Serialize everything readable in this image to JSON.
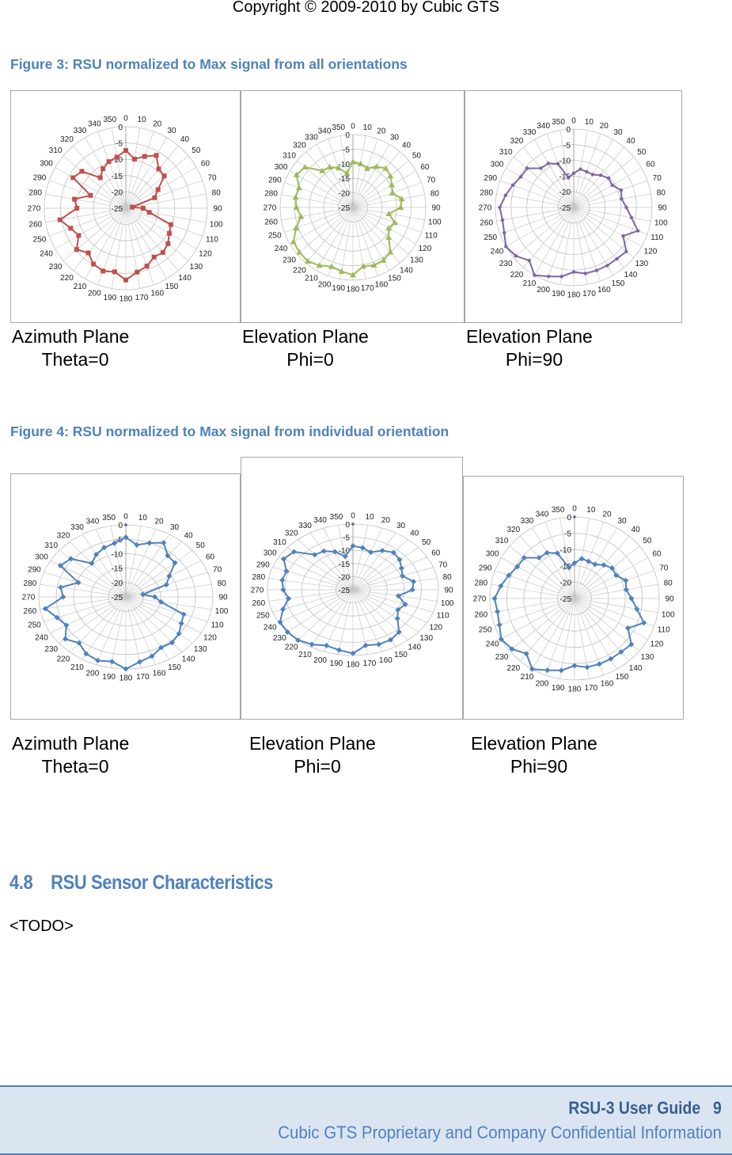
{
  "header": {
    "copyright": "Copyright © 2009-2010 by Cubic GTS"
  },
  "figure3": {
    "caption": "Figure 3: RSU normalized to Max signal from all orientations",
    "panels": [
      {
        "plane": "Azimuth Plane",
        "angle": "Theta=0"
      },
      {
        "plane": "Elevation Plane",
        "angle": "Phi=0"
      },
      {
        "plane": "Elevation Plane",
        "angle": "Phi=90"
      }
    ]
  },
  "figure4": {
    "caption": "Figure 4: RSU normalized to Max signal from individual orientation",
    "panels": [
      {
        "plane": "Azimuth Plane",
        "angle": "Theta=0"
      },
      {
        "plane": "Elevation Plane",
        "angle": "Phi=0"
      },
      {
        "plane": "Elevation Plane",
        "angle": "Phi=90"
      }
    ]
  },
  "section": {
    "number": "4.8",
    "title": "RSU Sensor Characteristics",
    "body": "<TODO>"
  },
  "footer": {
    "guide": "RSU-3 User Guide",
    "page": "9",
    "confidential": "Cubic GTS Proprietary and Company Confidential Information"
  },
  "chart_data": [
    {
      "type": "radar",
      "figure": "Figure 3",
      "panel": "Azimuth Plane Theta=0",
      "theta": [
        "0",
        "10",
        "20",
        "30",
        "40",
        "50",
        "60",
        "70",
        "80",
        "90",
        "100",
        "110",
        "120",
        "130",
        "140",
        "150",
        "160",
        "170",
        "180",
        "190",
        "200",
        "210",
        "220",
        "230",
        "240",
        "250",
        "260",
        "270",
        "280",
        "290",
        "300",
        "310",
        "320",
        "330",
        "340",
        "350"
      ],
      "radial_ticks": [
        "0",
        "-5",
        "-10",
        "-15",
        "-20",
        "-25"
      ],
      "rlim": [
        -25,
        0
      ],
      "grid": true,
      "color": "#c0504d",
      "marker": "square",
      "values": [
        -7.3,
        -9.7,
        -8.1,
        -6.3,
        -9.3,
        -9.6,
        -13.6,
        -15.6,
        -23,
        -19.7,
        -17.7,
        -10.3,
        -9.6,
        -8.1,
        -7.3,
        -7.7,
        -6.1,
        -5.1,
        -3,
        -5.2,
        -4.5,
        -5.2,
        -7.1,
        -5.3,
        -8.3,
        -7,
        -4.5,
        -10,
        -9,
        -13.5,
        -6.3,
        -7.4,
        -12.8,
        -11,
        -9.8,
        -9.1
      ]
    },
    {
      "type": "radar",
      "figure": "Figure 3",
      "panel": "Elevation Plane Phi=0",
      "theta": [
        "0",
        "10",
        "20",
        "30",
        "40",
        "50",
        "60",
        "70",
        "80",
        "90",
        "100",
        "110",
        "120",
        "130",
        "140",
        "150",
        "160",
        "170",
        "180",
        "190",
        "200",
        "210",
        "220",
        "230",
        "240",
        "250",
        "260",
        "270",
        "280",
        "290",
        "300",
        "310",
        "320",
        "330",
        "340",
        "350"
      ],
      "radial_ticks": [
        "0",
        "-5",
        "-10",
        "-15",
        "-20",
        "-25"
      ],
      "rlim": [
        -25,
        0
      ],
      "grid": true,
      "color": "#9bbb59",
      "marker": "triangle",
      "values": [
        -9.3,
        -9.8,
        -10.8,
        -8.8,
        -7.5,
        -8.2,
        -9.6,
        -10.6,
        -8,
        -8.6,
        -12.5,
        -9.7,
        -10.8,
        -9,
        -5,
        -4,
        -3.9,
        -4.5,
        -1.8,
        -2.7,
        -3.4,
        -2,
        -0.9,
        -1,
        -1.4,
        -4.2,
        -6.9,
        -5.6,
        -5,
        -5.3,
        -2.6,
        -3.5,
        -8.6,
        -9,
        -10.6,
        -13.1
      ]
    },
    {
      "type": "radar",
      "figure": "Figure 3",
      "panel": "Elevation Plane Phi=90",
      "theta": [
        "0",
        "10",
        "20",
        "30",
        "40",
        "50",
        "60",
        "70",
        "80",
        "90",
        "100",
        "110",
        "120",
        "130",
        "140",
        "150",
        "160",
        "170",
        "180",
        "190",
        "200",
        "210",
        "220",
        "230",
        "240",
        "250",
        "260",
        "270",
        "280",
        "290",
        "300",
        "310",
        "320",
        "330",
        "340",
        "350"
      ],
      "radial_ticks": [
        "0",
        "-5",
        "-10",
        "-15",
        "-20",
        "-25"
      ],
      "rlim": [
        -25,
        0
      ],
      "grid": true,
      "color": "#8064a2",
      "marker": "circle",
      "values": [
        -14.1,
        -12.6,
        -12.9,
        -12.9,
        -11.6,
        -10.5,
        -10.8,
        -8.9,
        -9.5,
        -8.2,
        -6.3,
        -3.2,
        -6.8,
        -3.1,
        -3.6,
        -3.6,
        -3.6,
        -3.6,
        -4.4,
        -2.6,
        -1.6,
        0,
        -2.9,
        -0.9,
        0,
        -1.4,
        -1.9,
        -1.4,
        -2.9,
        -4.3,
        -5.5,
        -5.6,
        -8.7,
        -8.8,
        -10.2,
        -15.4
      ]
    },
    {
      "type": "radar",
      "figure": "Figure 4",
      "panel": "Azimuth Plane Theta=0",
      "theta": [
        "0",
        "10",
        "20",
        "30",
        "40",
        "50",
        "60",
        "70",
        "80",
        "90",
        "100",
        "110",
        "120",
        "130",
        "140",
        "150",
        "160",
        "170",
        "180",
        "190",
        "200",
        "210",
        "220",
        "230",
        "240",
        "250",
        "260",
        "270",
        "280",
        "290",
        "300",
        "310",
        "320",
        "330",
        "340",
        "350"
      ],
      "radial_ticks": [
        "0",
        "-5",
        "-10",
        "-15",
        "-20",
        "-25"
      ],
      "rlim": [
        -25,
        0
      ],
      "grid": true,
      "color": "#4f81bd",
      "marker": "diamond",
      "reference_point": {
        "theta": 0,
        "value": 0,
        "color": "#8064a2"
      },
      "values": [
        -4.3,
        -6.7,
        -5.1,
        -3.3,
        -6.3,
        -6.6,
        -10.6,
        -12.6,
        -20,
        -16.7,
        -14.7,
        -7.3,
        -6.6,
        -5.1,
        -4.3,
        -4.7,
        -3.1,
        -2.1,
        0,
        -2.2,
        -1.5,
        -2.2,
        -4.1,
        -2.3,
        -5.3,
        -4,
        -1.5,
        -7,
        -6,
        -10.5,
        -3.3,
        -4.4,
        -9.8,
        -8,
        -6.8,
        -6.1
      ]
    },
    {
      "type": "radar",
      "figure": "Figure 4",
      "panel": "Elevation Plane Phi=0",
      "theta": [
        "0",
        "10",
        "20",
        "30",
        "40",
        "50",
        "60",
        "70",
        "80",
        "90",
        "100",
        "110",
        "120",
        "130",
        "140",
        "150",
        "160",
        "170",
        "180",
        "190",
        "200",
        "210",
        "220",
        "230",
        "240",
        "250",
        "260",
        "270",
        "280",
        "290",
        "300",
        "310",
        "320",
        "330",
        "340",
        "350"
      ],
      "radial_ticks": [
        "0",
        "-5",
        "-10",
        "-15",
        "-20",
        "-25"
      ],
      "rlim": [
        -25,
        0
      ],
      "grid": true,
      "color": "#4f81bd",
      "marker": "diamond",
      "reference_point": {
        "theta": 0,
        "value": 0,
        "color": "#8064a2"
      },
      "values": [
        -8.3,
        -8.8,
        -9.8,
        -7.8,
        -6.5,
        -7.2,
        -8.6,
        -9.6,
        -7,
        -7.6,
        -11.5,
        -8.7,
        -9.8,
        -8,
        -4,
        -3,
        -2.9,
        -3.5,
        -0.8,
        -1.7,
        -2.4,
        -1,
        0,
        0,
        -0.4,
        -3.2,
        -5.9,
        -4.6,
        -4,
        -4.3,
        -1.6,
        -2.5,
        -7.6,
        -8,
        -9.6,
        -12.1
      ]
    },
    {
      "type": "radar",
      "figure": "Figure 4",
      "panel": "Elevation Plane Phi=90",
      "theta": [
        "0",
        "10",
        "20",
        "30",
        "40",
        "50",
        "60",
        "70",
        "80",
        "90",
        "100",
        "110",
        "120",
        "130",
        "140",
        "150",
        "160",
        "170",
        "180",
        "190",
        "200",
        "210",
        "220",
        "230",
        "240",
        "250",
        "260",
        "270",
        "280",
        "290",
        "300",
        "310",
        "320",
        "330",
        "340",
        "350"
      ],
      "radial_ticks": [
        "0",
        "-5",
        "-10",
        "-15",
        "-20",
        "-25"
      ],
      "rlim": [
        -25,
        0
      ],
      "grid": true,
      "color": "#4f81bd",
      "marker": "diamond",
      "reference_point": {
        "theta": 0,
        "value": 0,
        "color": "#8064a2"
      },
      "values": [
        -14.1,
        -12.6,
        -12.9,
        -12.9,
        -11.6,
        -10.5,
        -10.8,
        -8.9,
        -9.5,
        -8.2,
        -6.3,
        -3.2,
        -6.8,
        -3.1,
        -3.6,
        -3.6,
        -3.6,
        -3.6,
        -4.4,
        -2.6,
        -1.6,
        0,
        -2.9,
        -0.9,
        0,
        -1.4,
        -1.9,
        -1.4,
        -2.9,
        -4.3,
        -5.5,
        -5.6,
        -8.7,
        -8.8,
        -10.2,
        -15.4
      ]
    }
  ]
}
